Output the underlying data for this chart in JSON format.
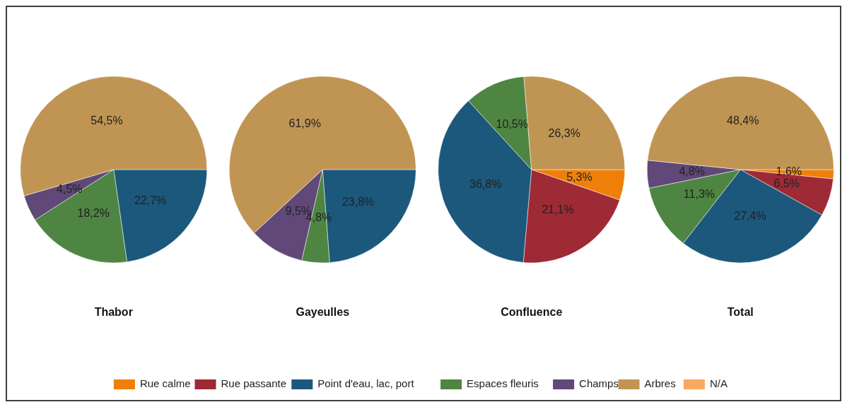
{
  "chart_data": [
    {
      "type": "pie",
      "title": "Thabor",
      "categories": [
        "Rue calme",
        "Rue passante",
        "Point d'eau, lac, port",
        "Espaces fleuris",
        "Champs",
        "Arbres",
        "N/A"
      ],
      "values": [
        0,
        0,
        22.7,
        18.2,
        4.5,
        54.5,
        0
      ],
      "value_labels": [
        null,
        null,
        "22,7%",
        "18,2%",
        "4,5%",
        "54,5%",
        null
      ],
      "colors": [
        "#f07f09",
        "#9e2a35",
        "#1b587c",
        "#4e8542",
        "#604878",
        "#c09553",
        "#f9a960"
      ],
      "legend": "bottom"
    },
    {
      "type": "pie",
      "title": "Gayeulles",
      "values": [
        0,
        0,
        23.8,
        4.8,
        9.5,
        61.9,
        0
      ],
      "value_labels": [
        null,
        null,
        "23,8%",
        "4,8%",
        "9,5%",
        "61,9%",
        null
      ]
    },
    {
      "type": "pie",
      "title": "Confluence",
      "values": [
        5.3,
        21.1,
        36.8,
        10.5,
        0,
        26.3,
        0
      ],
      "value_labels": [
        "5,3%",
        "21,1%",
        "36,8%",
        "10,5%",
        null,
        "26,3%",
        null
      ]
    },
    {
      "type": "pie",
      "title": "Total",
      "values": [
        1.6,
        6.5,
        27.4,
        11.3,
        4.8,
        48.4,
        0
      ],
      "value_labels": [
        "1,6%",
        "6,5%",
        "27,4%",
        "11,3%",
        "4,8%",
        "48,4%",
        null
      ]
    }
  ]
}
